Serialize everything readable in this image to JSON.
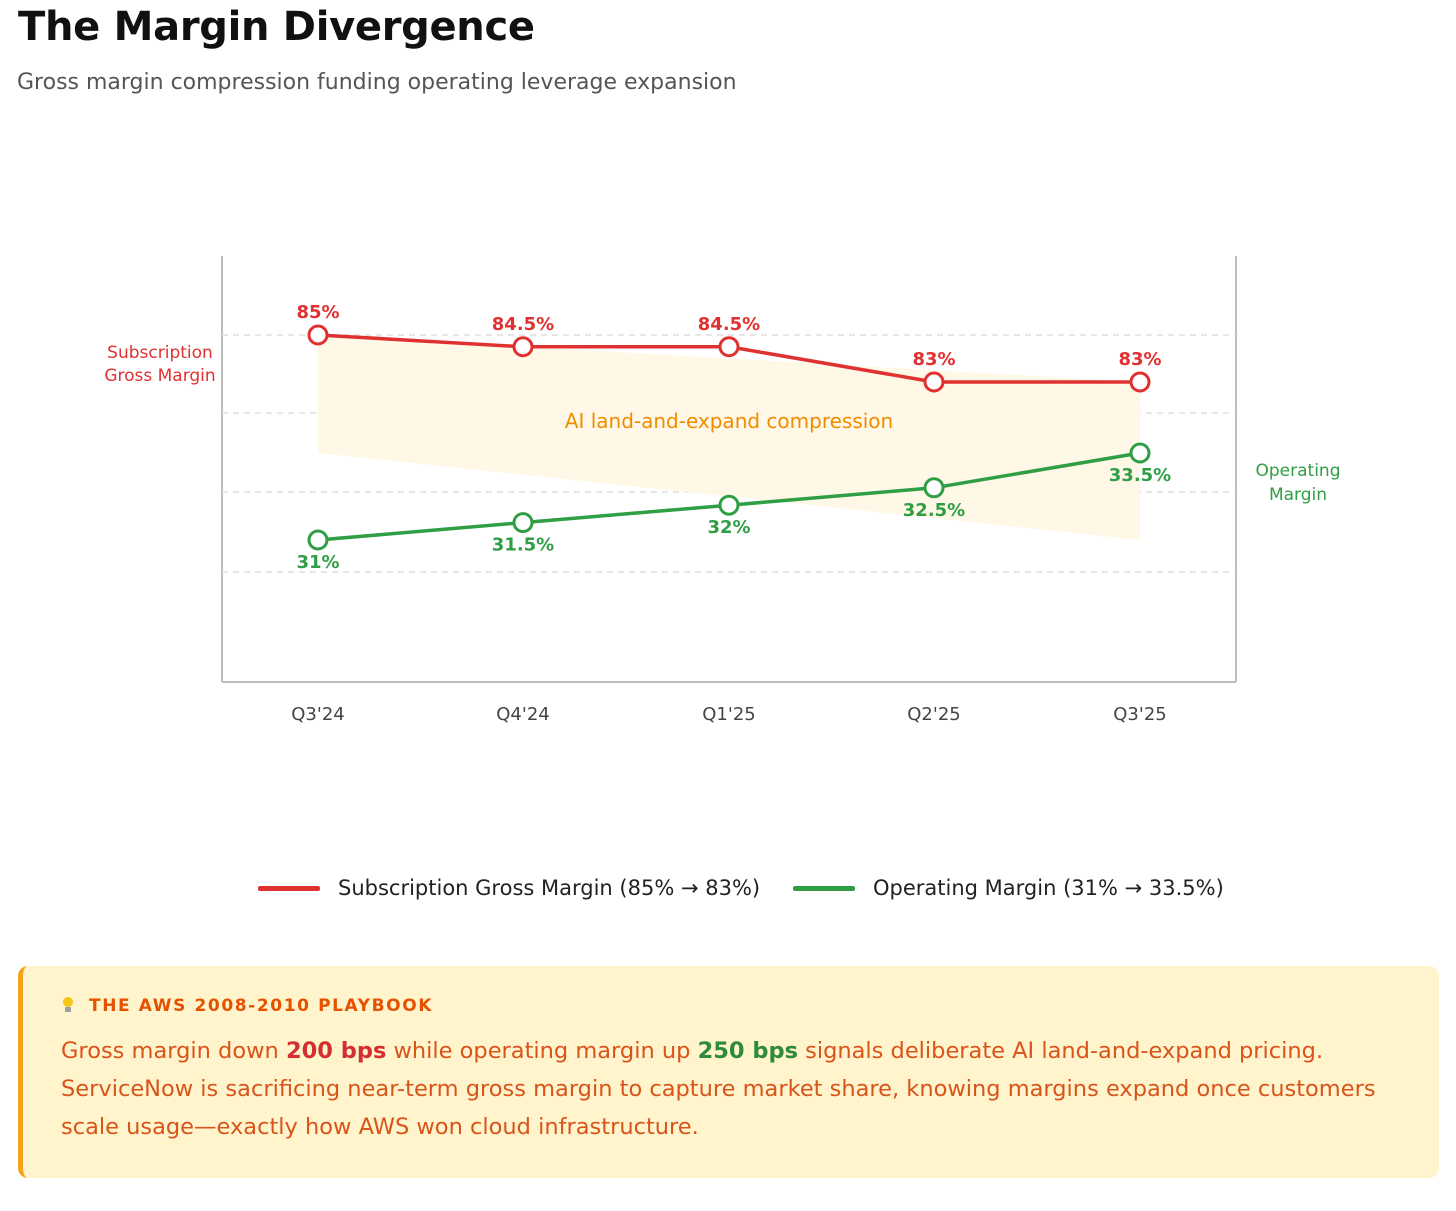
{
  "header": {
    "title": "The Margin Divergence",
    "subtitle": "Gross margin compression funding operating leverage expansion"
  },
  "colors": {
    "gross": "#e03131",
    "operating": "#2f9e44",
    "band": "#fff8e6",
    "annotation": "#f08c00"
  },
  "chart_data": {
    "type": "line",
    "categories": [
      "Q3'24",
      "Q4'24",
      "Q1'25",
      "Q2'25",
      "Q3'25"
    ],
    "series": [
      {
        "name": "Subscription Gross Margin",
        "side_label": [
          "Subscription",
          "Gross Margin"
        ],
        "values": [
          85,
          84.5,
          84.5,
          83,
          83
        ],
        "labels": [
          "85%",
          "84.5%",
          "84.5%",
          "83%",
          "83%"
        ]
      },
      {
        "name": "Operating Margin",
        "side_label": [
          "Operating",
          "Margin"
        ],
        "values": [
          31,
          31.5,
          32,
          32.5,
          33.5
        ],
        "labels": [
          "31%",
          "31.5%",
          "32%",
          "32.5%",
          "33.5%"
        ]
      }
    ],
    "annotation": "AI land-and-expand compression",
    "grid": true
  },
  "legend": {
    "gross": "Subscription Gross Margin (85% → 83%)",
    "operating": "Operating Margin (31% → 33.5%)"
  },
  "callout": {
    "heading": "THE AWS 2008-2010 PLAYBOOK",
    "icon": "lightbulb-icon",
    "text_1": "Gross margin down ",
    "highlight_1": "200 bps",
    "text_2": " while operating margin up ",
    "highlight_2": "250 bps",
    "text_3": " signals deliberate AI land-and-expand pricing. ServiceNow is sacrificing near-term gross margin to capture market share, knowing margins expand once customers scale usage—exactly how AWS won cloud infrastructure."
  }
}
